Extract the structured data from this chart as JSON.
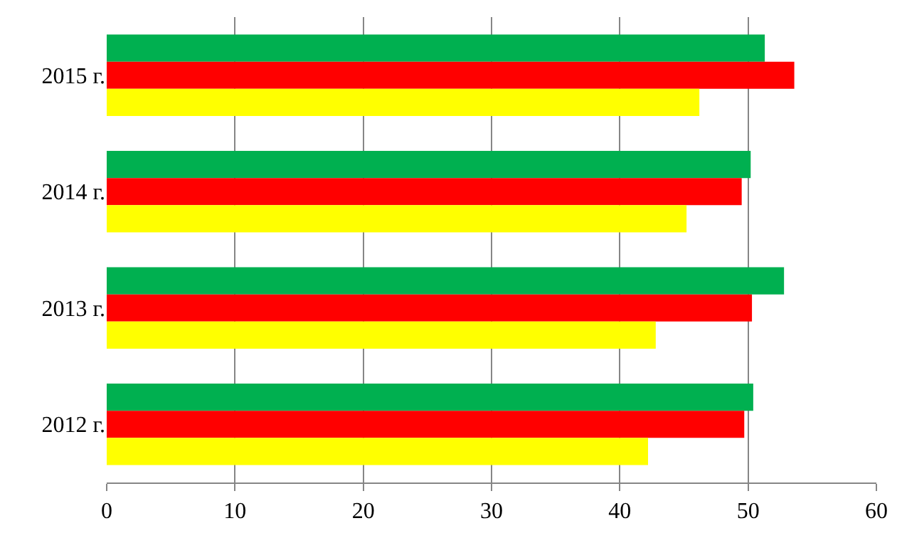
{
  "chart_data": {
    "type": "bar",
    "orientation": "horizontal",
    "categories": [
      "2015 г.",
      "2014 г.",
      "2013 г.",
      "2012 г."
    ],
    "series": [
      {
        "color": "#00b050",
        "values": [
          51.3,
          50.2,
          52.8,
          50.4
        ]
      },
      {
        "color": "#ff0000",
        "values": [
          53.6,
          49.5,
          50.3,
          49.7
        ]
      },
      {
        "color": "#ffff00",
        "values": [
          46.2,
          45.2,
          42.8,
          42.2
        ]
      }
    ],
    "xlim": [
      0,
      60
    ],
    "xticks": [
      0,
      10,
      20,
      30,
      40,
      50,
      60
    ],
    "grid": "x"
  }
}
